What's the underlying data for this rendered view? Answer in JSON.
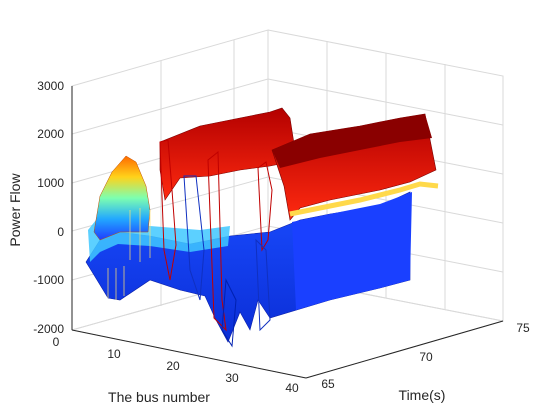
{
  "chart_data": {
    "type": "surface",
    "title": "",
    "xlabel": "The bus number",
    "ylabel": "Time(s)",
    "zlabel": "Power Flow",
    "x_ticks": [
      0,
      10,
      20,
      30,
      40
    ],
    "y_ticks": [
      65,
      70,
      75
    ],
    "z_ticks": [
      -2000,
      -1000,
      0,
      1000,
      2000,
      3000
    ],
    "xlim": [
      0,
      40
    ],
    "ylim": [
      64,
      76
    ],
    "zlim": [
      -2000,
      3000
    ],
    "grid": true,
    "colormap": "jet",
    "colors": {
      "low": "#1e3cff",
      "mid_low": "#30d0ff",
      "mid": "#ffe060",
      "high": "#e01a0a",
      "max": "#7a0000"
    },
    "approx_levels": [
      {
        "bus": 1,
        "low": -600,
        "high": -200
      },
      {
        "bus": 2,
        "low": -500,
        "high": 200
      },
      {
        "bus": 4,
        "low": -400,
        "high": 1000
      },
      {
        "bus": 7,
        "low": -300,
        "high": 1600
      },
      {
        "bus": 10,
        "low": -200,
        "high": 400
      },
      {
        "bus": 15,
        "low": -300,
        "high": 0
      },
      {
        "bus": 19,
        "low": -400,
        "high": 1900
      },
      {
        "bus": 21,
        "low": -1700,
        "high": 2100
      },
      {
        "bus": 24,
        "low": -1200,
        "high": 1600
      },
      {
        "bus": 28,
        "low": -1100,
        "high": 1900
      },
      {
        "bus": 31,
        "low": -1000,
        "high": 2000
      },
      {
        "bus": 38,
        "low": -900,
        "high": 1800
      }
    ]
  }
}
